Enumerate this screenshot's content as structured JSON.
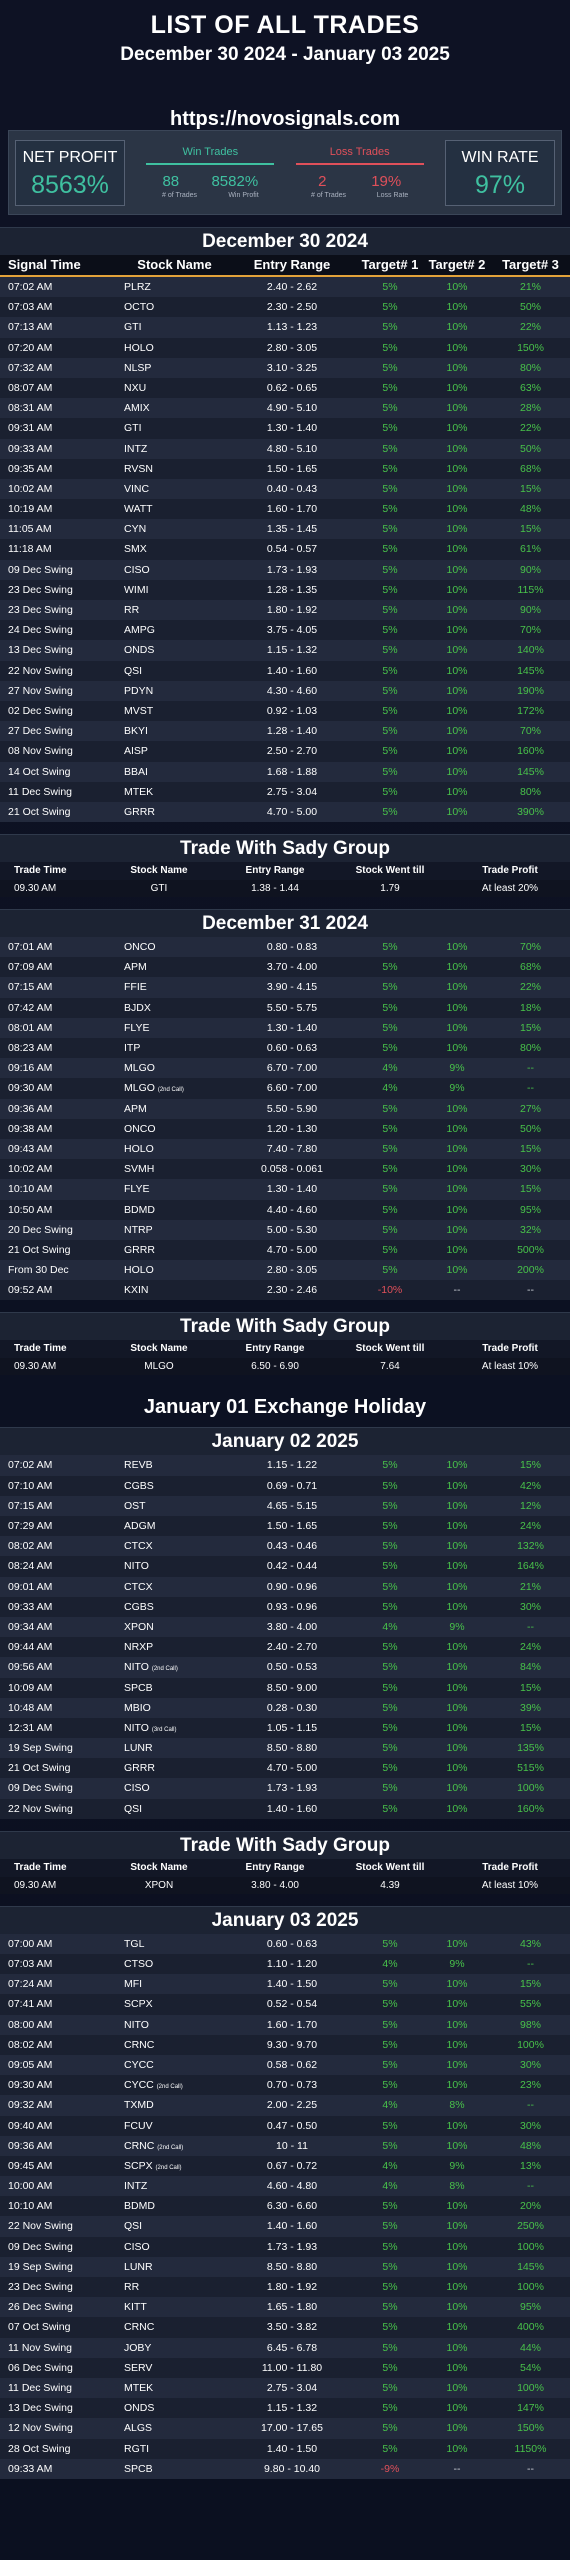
{
  "header": {
    "title": "LIST OF ALL TRADES",
    "date_range": "December 30 2024 - January 03 2025",
    "url": "https://novosignals.com"
  },
  "stats": {
    "net_profit_label": "NET PROFIT",
    "net_profit_value": "8563%",
    "win_trades_label": "Win Trades",
    "win_count": "88",
    "win_profit": "8582%",
    "win_count_caption": "# of Trades",
    "win_profit_caption": "Win Profit",
    "loss_trades_label": "Loss Trades",
    "loss_count": "2",
    "loss_rate": "19%",
    "loss_count_caption": "# of Trades",
    "loss_rate_caption": "Loss Rate",
    "win_rate_label": "WIN RATE",
    "win_rate_value": "97%"
  },
  "columns": [
    "Signal Time",
    "Stock Name",
    "Entry Range",
    "Target# 1",
    "Target# 2",
    "Target# 3"
  ],
  "sady_columns": [
    "Trade Time",
    "Stock Name",
    "Entry Range",
    "Stock Went till",
    "Trade Profit"
  ],
  "holiday_label": "January 01 Exchange Holiday",
  "days": [
    {
      "title": "December 30 2024",
      "rows": [
        [
          "07:02 AM",
          "PLRZ",
          "",
          "2.40 - 2.62",
          "5%",
          "10%",
          "21%"
        ],
        [
          "07:03 AM",
          "OCTO",
          "",
          "2.30 - 2.50",
          "5%",
          "10%",
          "50%"
        ],
        [
          "07:13 AM",
          "GTI",
          "",
          "1.13 - 1.23",
          "5%",
          "10%",
          "22%"
        ],
        [
          "07:20 AM",
          "HOLO",
          "",
          "2.80 - 3.05",
          "5%",
          "10%",
          "150%"
        ],
        [
          "07:32 AM",
          "NLSP",
          "",
          "3.10 - 3.25",
          "5%",
          "10%",
          "80%"
        ],
        [
          "08:07 AM",
          "NXU",
          "",
          "0.62 - 0.65",
          "5%",
          "10%",
          "63%"
        ],
        [
          "08:31 AM",
          "AMIX",
          "",
          "4.90 - 5.10",
          "5%",
          "10%",
          "28%"
        ],
        [
          "09:31 AM",
          "GTI",
          "",
          "1.30 - 1.40",
          "5%",
          "10%",
          "22%"
        ],
        [
          "09:33 AM",
          "INTZ",
          "",
          "4.80 - 5.10",
          "5%",
          "10%",
          "50%"
        ],
        [
          "09:35 AM",
          "RVSN",
          "",
          "1.50 - 1.65",
          "5%",
          "10%",
          "68%"
        ],
        [
          "10:02 AM",
          "VINC",
          "",
          "0.40 - 0.43",
          "5%",
          "10%",
          "15%"
        ],
        [
          "10:19 AM",
          "WATT",
          "",
          "1.60 - 1.70",
          "5%",
          "10%",
          "48%"
        ],
        [
          "11:05 AM",
          "CYN",
          "",
          "1.35 - 1.45",
          "5%",
          "10%",
          "15%"
        ],
        [
          "11:18 AM",
          "SMX",
          "",
          "0.54 - 0.57",
          "5%",
          "10%",
          "61%"
        ],
        [
          "09 Dec Swing",
          "CISO",
          "",
          "1.73 - 1.93",
          "5%",
          "10%",
          "90%"
        ],
        [
          "23 Dec Swing",
          "WIMI",
          "",
          "1.28 - 1.35",
          "5%",
          "10%",
          "115%"
        ],
        [
          "23 Dec Swing",
          "RR",
          "",
          "1.80 - 1.92",
          "5%",
          "10%",
          "90%"
        ],
        [
          "24 Dec Swing",
          "AMPG",
          "",
          "3.75 - 4.05",
          "5%",
          "10%",
          "70%"
        ],
        [
          "13 Dec Swing",
          "ONDS",
          "",
          "1.15 - 1.32",
          "5%",
          "10%",
          "140%"
        ],
        [
          "22 Nov Swing",
          "QSI",
          "",
          "1.40 - 1.60",
          "5%",
          "10%",
          "145%"
        ],
        [
          "27 Nov Swing",
          "PDYN",
          "",
          "4.30 - 4.60",
          "5%",
          "10%",
          "190%"
        ],
        [
          "02 Dec Swing",
          "MVST",
          "",
          "0.92 - 1.03",
          "5%",
          "10%",
          "172%"
        ],
        [
          "27 Dec Swing",
          "BKYI",
          "",
          "1.28 - 1.40",
          "5%",
          "10%",
          "70%"
        ],
        [
          "08 Nov Swing",
          "AISP",
          "",
          "2.50 - 2.70",
          "5%",
          "10%",
          "160%"
        ],
        [
          "14 Oct Swing",
          "BBAI",
          "",
          "1.68 - 1.88",
          "5%",
          "10%",
          "145%"
        ],
        [
          "11 Dec Swing",
          "MTEK",
          "",
          "2.75 - 3.04",
          "5%",
          "10%",
          "80%"
        ],
        [
          "21 Oct Swing",
          "GRRR",
          "",
          "4.70 - 5.00",
          "5%",
          "10%",
          "390%"
        ]
      ],
      "sady": {
        "title": "Trade With Sady Group",
        "row": [
          "09.30 AM",
          "GTI",
          "1.38 - 1.44",
          "1.79",
          "At least 20%"
        ]
      }
    },
    {
      "title": "December 31 2024",
      "rows": [
        [
          "07:01 AM",
          "ONCO",
          "",
          "0.80 - 0.83",
          "5%",
          "10%",
          "70%"
        ],
        [
          "07:09 AM",
          "APM",
          "",
          "3.70 - 4.00",
          "5%",
          "10%",
          "68%"
        ],
        [
          "07:15 AM",
          "FFIE",
          "",
          "3.90 - 4.15",
          "5%",
          "10%",
          "22%"
        ],
        [
          "07:42 AM",
          "BJDX",
          "",
          "5.50 - 5.75",
          "5%",
          "10%",
          "18%"
        ],
        [
          "08:01 AM",
          "FLYE",
          "",
          "1.30 - 1.40",
          "5%",
          "10%",
          "15%"
        ],
        [
          "08:23 AM",
          "ITP",
          "",
          "0.60 - 0.63",
          "5%",
          "10%",
          "80%"
        ],
        [
          "09:16 AM",
          "MLGO",
          "",
          "6.70 - 7.00",
          "4%",
          "9%",
          "--"
        ],
        [
          "09:30 AM",
          "MLGO",
          "(2nd Call)",
          "6.60 - 7.00",
          "4%",
          "9%",
          "--"
        ],
        [
          "09:36 AM",
          "APM",
          "",
          "5.50 - 5.90",
          "5%",
          "10%",
          "27%"
        ],
        [
          "09:38 AM",
          "ONCO",
          "",
          "1.20 - 1.30",
          "5%",
          "10%",
          "50%"
        ],
        [
          "09:43 AM",
          "HOLO",
          "",
          "7.40 - 7.80",
          "5%",
          "10%",
          "15%"
        ],
        [
          "10:02 AM",
          "SVMH",
          "",
          "0.058 - 0.061",
          "5%",
          "10%",
          "30%"
        ],
        [
          "10:10 AM",
          "FLYE",
          "",
          "1.30 - 1.40",
          "5%",
          "10%",
          "15%"
        ],
        [
          "10:50 AM",
          "BDMD",
          "",
          "4.40 - 4.60",
          "5%",
          "10%",
          "95%"
        ],
        [
          "20 Dec Swing",
          "NTRP",
          "",
          "5.00 - 5.30",
          "5%",
          "10%",
          "32%"
        ],
        [
          "21 Oct Swing",
          "GRRR",
          "",
          "4.70 - 5.00",
          "5%",
          "10%",
          "500%"
        ],
        [
          "From 30 Dec",
          "HOLO",
          "",
          "2.80 - 3.05",
          "5%",
          "10%",
          "200%"
        ],
        [
          "09:52 AM",
          "KXIN",
          "",
          "2.30 - 2.46",
          "-10%",
          "--",
          "--"
        ]
      ],
      "sady": {
        "title": "Trade With Sady Group",
        "row": [
          "09.30 AM",
          "MLGO",
          "6.50 - 6.90",
          "7.64",
          "At least 10%"
        ]
      }
    },
    {
      "title": "January 02 2025",
      "rows": [
        [
          "07:02 AM",
          "REVB",
          "",
          "1.15 - 1.22",
          "5%",
          "10%",
          "15%"
        ],
        [
          "07:10 AM",
          "CGBS",
          "",
          "0.69 - 0.71",
          "5%",
          "10%",
          "42%"
        ],
        [
          "07:15 AM",
          "OST",
          "",
          "4.65 - 5.15",
          "5%",
          "10%",
          "12%"
        ],
        [
          "07:29 AM",
          "ADGM",
          "",
          "1.50 - 1.65",
          "5%",
          "10%",
          "24%"
        ],
        [
          "08:02 AM",
          "CTCX",
          "",
          "0.43 - 0.46",
          "5%",
          "10%",
          "132%"
        ],
        [
          "08:24 AM",
          "NITO",
          "",
          "0.42 - 0.44",
          "5%",
          "10%",
          "164%"
        ],
        [
          "09:01 AM",
          "CTCX",
          "",
          "0.90 - 0.96",
          "5%",
          "10%",
          "21%"
        ],
        [
          "09:33 AM",
          "CGBS",
          "",
          "0.93 - 0.96",
          "5%",
          "10%",
          "30%"
        ],
        [
          "09:34 AM",
          "XPON",
          "",
          "3.80 - 4.00",
          "4%",
          "9%",
          "--"
        ],
        [
          "09:44 AM",
          "NRXP",
          "",
          "2.40 - 2.70",
          "5%",
          "10%",
          "24%"
        ],
        [
          "09:56 AM",
          "NITO",
          "(2nd Call)",
          "0.50 - 0.53",
          "5%",
          "10%",
          "84%"
        ],
        [
          "10:09 AM",
          "SPCB",
          "",
          "8.50 - 9.00",
          "5%",
          "10%",
          "15%"
        ],
        [
          "10:48 AM",
          "MBIO",
          "",
          "0.28 - 0.30",
          "5%",
          "10%",
          "39%"
        ],
        [
          "12:31 AM",
          "NITO",
          "(3rd Call)",
          "1.05 - 1.15",
          "5%",
          "10%",
          "15%"
        ],
        [
          "19 Sep Swing",
          "LUNR",
          "",
          "8.50 - 8.80",
          "5%",
          "10%",
          "135%"
        ],
        [
          "21 Oct Swing",
          "GRRR",
          "",
          "4.70 - 5.00",
          "5%",
          "10%",
          "515%"
        ],
        [
          "09 Dec Swing",
          "CISO",
          "",
          "1.73 - 1.93",
          "5%",
          "10%",
          "100%"
        ],
        [
          "22 Nov Swing",
          "QSI",
          "",
          "1.40 - 1.60",
          "5%",
          "10%",
          "160%"
        ]
      ],
      "sady": {
        "title": "Trade With Sady Group",
        "row": [
          "09.30 AM",
          "XPON",
          "3.80 - 4.00",
          "4.39",
          "At least 10%"
        ]
      }
    },
    {
      "title": "January 03 2025",
      "rows": [
        [
          "07:00 AM",
          "TGL",
          "",
          "0.60 - 0.63",
          "5%",
          "10%",
          "43%"
        ],
        [
          "07:03 AM",
          "CTSO",
          "",
          "1.10 - 1.20",
          "4%",
          "9%",
          "--"
        ],
        [
          "07:24 AM",
          "MFI",
          "",
          "1.40 - 1.50",
          "5%",
          "10%",
          "15%"
        ],
        [
          "07:41 AM",
          "SCPX",
          "",
          "0.52 - 0.54",
          "5%",
          "10%",
          "55%"
        ],
        [
          "08:00 AM",
          "NITO",
          "",
          "1.60 - 1.70",
          "5%",
          "10%",
          "98%"
        ],
        [
          "08:02 AM",
          "CRNC",
          "",
          "9.30 - 9.70",
          "5%",
          "10%",
          "100%"
        ],
        [
          "09:05 AM",
          "CYCC",
          "",
          "0.58 - 0.62",
          "5%",
          "10%",
          "30%"
        ],
        [
          "09:30 AM",
          "CYCC",
          "(2nd Call)",
          "0.70 - 0.73",
          "5%",
          "10%",
          "23%"
        ],
        [
          "09:32 AM",
          "TXMD",
          "",
          "2.00 - 2.25",
          "4%",
          "8%",
          "--"
        ],
        [
          "09:40 AM",
          "FCUV",
          "",
          "0.47 - 0.50",
          "5%",
          "10%",
          "30%"
        ],
        [
          "09:36 AM",
          "CRNC",
          "(2nd Call)",
          "10 - 11",
          "5%",
          "10%",
          "48%"
        ],
        [
          "09:45 AM",
          "SCPX",
          "(2nd Call)",
          "0.67 - 0.72",
          "4%",
          "9%",
          "13%"
        ],
        [
          "10:00 AM",
          "INTZ",
          "",
          "4.60 - 4.80",
          "4%",
          "8%",
          "--"
        ],
        [
          "10:10 AM",
          "BDMD",
          "",
          "6.30 - 6.60",
          "5%",
          "10%",
          "20%"
        ],
        [
          "22 Nov Swing",
          "QSI",
          "",
          "1.40 - 1.60",
          "5%",
          "10%",
          "250%"
        ],
        [
          "09 Dec Swing",
          "CISO",
          "",
          "1.73 - 1.93",
          "5%",
          "10%",
          "100%"
        ],
        [
          "19 Sep Swing",
          "LUNR",
          "",
          "8.50 - 8.80",
          "5%",
          "10%",
          "145%"
        ],
        [
          "23 Dec Swing",
          "RR",
          "",
          "1.80 - 1.92",
          "5%",
          "10%",
          "100%"
        ],
        [
          "26 Dec Swing",
          "KITT",
          "",
          "1.65 - 1.80",
          "5%",
          "10%",
          "95%"
        ],
        [
          "07 Oct Swing",
          "CRNC",
          "",
          "3.50 - 3.82",
          "5%",
          "10%",
          "400%"
        ],
        [
          "11 Nov Swing",
          "JOBY",
          "",
          "6.45 - 6.78",
          "5%",
          "10%",
          "44%"
        ],
        [
          "06 Dec Swing",
          "SERV",
          "",
          "11.00 - 11.80",
          "5%",
          "10%",
          "54%"
        ],
        [
          "11 Dec Swing",
          "MTEK",
          "",
          "2.75 - 3.04",
          "5%",
          "10%",
          "100%"
        ],
        [
          "13 Dec Swing",
          "ONDS",
          "",
          "1.15 - 1.32",
          "5%",
          "10%",
          "147%"
        ],
        [
          "12 Nov Swing",
          "ALGS",
          "",
          "17.00 - 17.65",
          "5%",
          "10%",
          "150%"
        ],
        [
          "28 Oct Swing",
          "RGTI",
          "",
          "1.40 - 1.50",
          "5%",
          "10%",
          "1150%"
        ],
        [
          "09:33 AM",
          "SPCB",
          "",
          "9.80 - 10.40",
          "-9%",
          "--",
          "--"
        ]
      ]
    }
  ]
}
